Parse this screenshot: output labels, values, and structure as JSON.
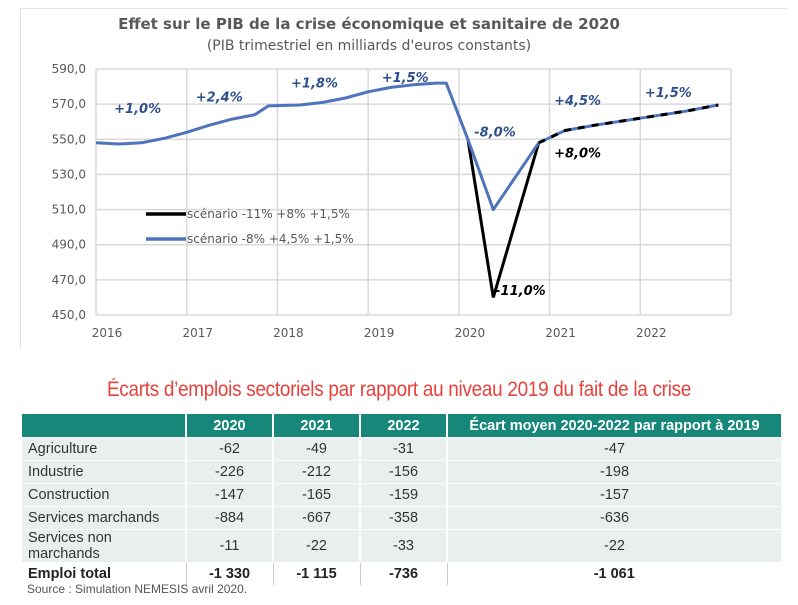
{
  "chart_data": {
    "type": "line",
    "title": "Effet sur le PIB de la crise économique et sanitaire de 2020",
    "subtitle": "(PIB trimestriel en milliards d'euros constants)",
    "xlabel": "",
    "ylabel": "",
    "ylim": [
      450,
      590
    ],
    "xlim": [
      2016,
      2023
    ],
    "yticks": [
      "590,0",
      "570,0",
      "550,0",
      "530,0",
      "510,0",
      "490,0",
      "470,0",
      "450,0"
    ],
    "ytick_values": [
      590,
      570,
      550,
      530,
      510,
      490,
      470,
      450
    ],
    "xticks": [
      "2016",
      "2017",
      "2018",
      "2019",
      "2020",
      "2021",
      "2022"
    ],
    "grid": true,
    "legend_position": "center-left",
    "series": [
      {
        "name": "scénario -8% +4,5% +1,5%",
        "color": "#4f73bd",
        "points": [
          [
            2016.0,
            548
          ],
          [
            2016.25,
            547.3
          ],
          [
            2016.5,
            548
          ],
          [
            2016.75,
            550.5
          ],
          [
            2017.0,
            554
          ],
          [
            2017.25,
            558
          ],
          [
            2017.5,
            561.5
          ],
          [
            2017.75,
            564
          ],
          [
            2017.9,
            569
          ],
          [
            2018.25,
            569.5
          ],
          [
            2018.5,
            571
          ],
          [
            2018.75,
            573.5
          ],
          [
            2019.0,
            577
          ],
          [
            2019.25,
            579.5
          ],
          [
            2019.5,
            581
          ],
          [
            2019.75,
            582
          ],
          [
            2019.86,
            582
          ],
          [
            2020.1,
            550
          ],
          [
            2020.38,
            510
          ],
          [
            2020.88,
            548
          ],
          [
            2021.17,
            555
          ],
          [
            2021.5,
            558
          ],
          [
            2022.0,
            562
          ],
          [
            2022.5,
            566
          ],
          [
            2022.86,
            569.5
          ]
        ]
      },
      {
        "name": "scénario -11% +8% +1,5%",
        "color": "#000000",
        "points": [
          [
            2020.1,
            550
          ],
          [
            2020.38,
            460
          ],
          [
            2020.88,
            548
          ],
          [
            2021.17,
            555
          ],
          [
            2021.5,
            558
          ],
          [
            2022.0,
            562
          ],
          [
            2022.5,
            566
          ],
          [
            2022.86,
            569.5
          ]
        ]
      }
    ],
    "annotations": [
      {
        "text": "+1,0%",
        "x": 2016.2,
        "y": 565,
        "color": "#2f4f8f"
      },
      {
        "text": "+2,4%",
        "x": 2017.1,
        "y": 571.5,
        "color": "#2f4f8f"
      },
      {
        "text": "+1,8%",
        "x": 2018.15,
        "y": 579.5,
        "color": "#2f4f8f"
      },
      {
        "text": "+1,5%",
        "x": 2019.15,
        "y": 582.5,
        "color": "#2f4f8f"
      },
      {
        "text": "-8,0%",
        "x": 2020.17,
        "y": 551.5,
        "color": "#2f4f8f"
      },
      {
        "text": "+4,5%",
        "x": 2021.05,
        "y": 569.5,
        "color": "#2f4f8f"
      },
      {
        "text": "+1,5%",
        "x": 2022.05,
        "y": 574,
        "color": "#2f4f8f"
      },
      {
        "text": "+8,0%",
        "x": 2021.05,
        "y": 539.5,
        "color": "#000000"
      },
      {
        "text": "-11,0%",
        "x": 2020.4,
        "y": 461.5,
        "color": "#000000"
      }
    ]
  },
  "table": {
    "title": "Écarts d’emplois sectoriels par rapport au niveau 2019 du fait de la crise",
    "headers": [
      "",
      "2020",
      "2021",
      "2022",
      "Écart moyen 2020-2022 par rapport à 2019"
    ],
    "rows": [
      [
        "Agriculture",
        "-62",
        "-49",
        "-31",
        "-47"
      ],
      [
        "Industrie",
        "-226",
        "-212",
        "-156",
        "-198"
      ],
      [
        "Construction",
        "-147",
        "-165",
        "-159",
        "-157"
      ],
      [
        "Services marchands",
        "-884",
        "-667",
        "-358",
        "-636"
      ],
      [
        "Services non marchands",
        "-11",
        "-22",
        "-33",
        "-22"
      ]
    ],
    "total": [
      "Emploi total",
      "-1 330",
      "-1 115",
      "-736",
      "-1 061"
    ],
    "header_color": "#17877a",
    "title_color": "#e8413c"
  },
  "source": "Source : Simulation NEMESIS avril 2020."
}
